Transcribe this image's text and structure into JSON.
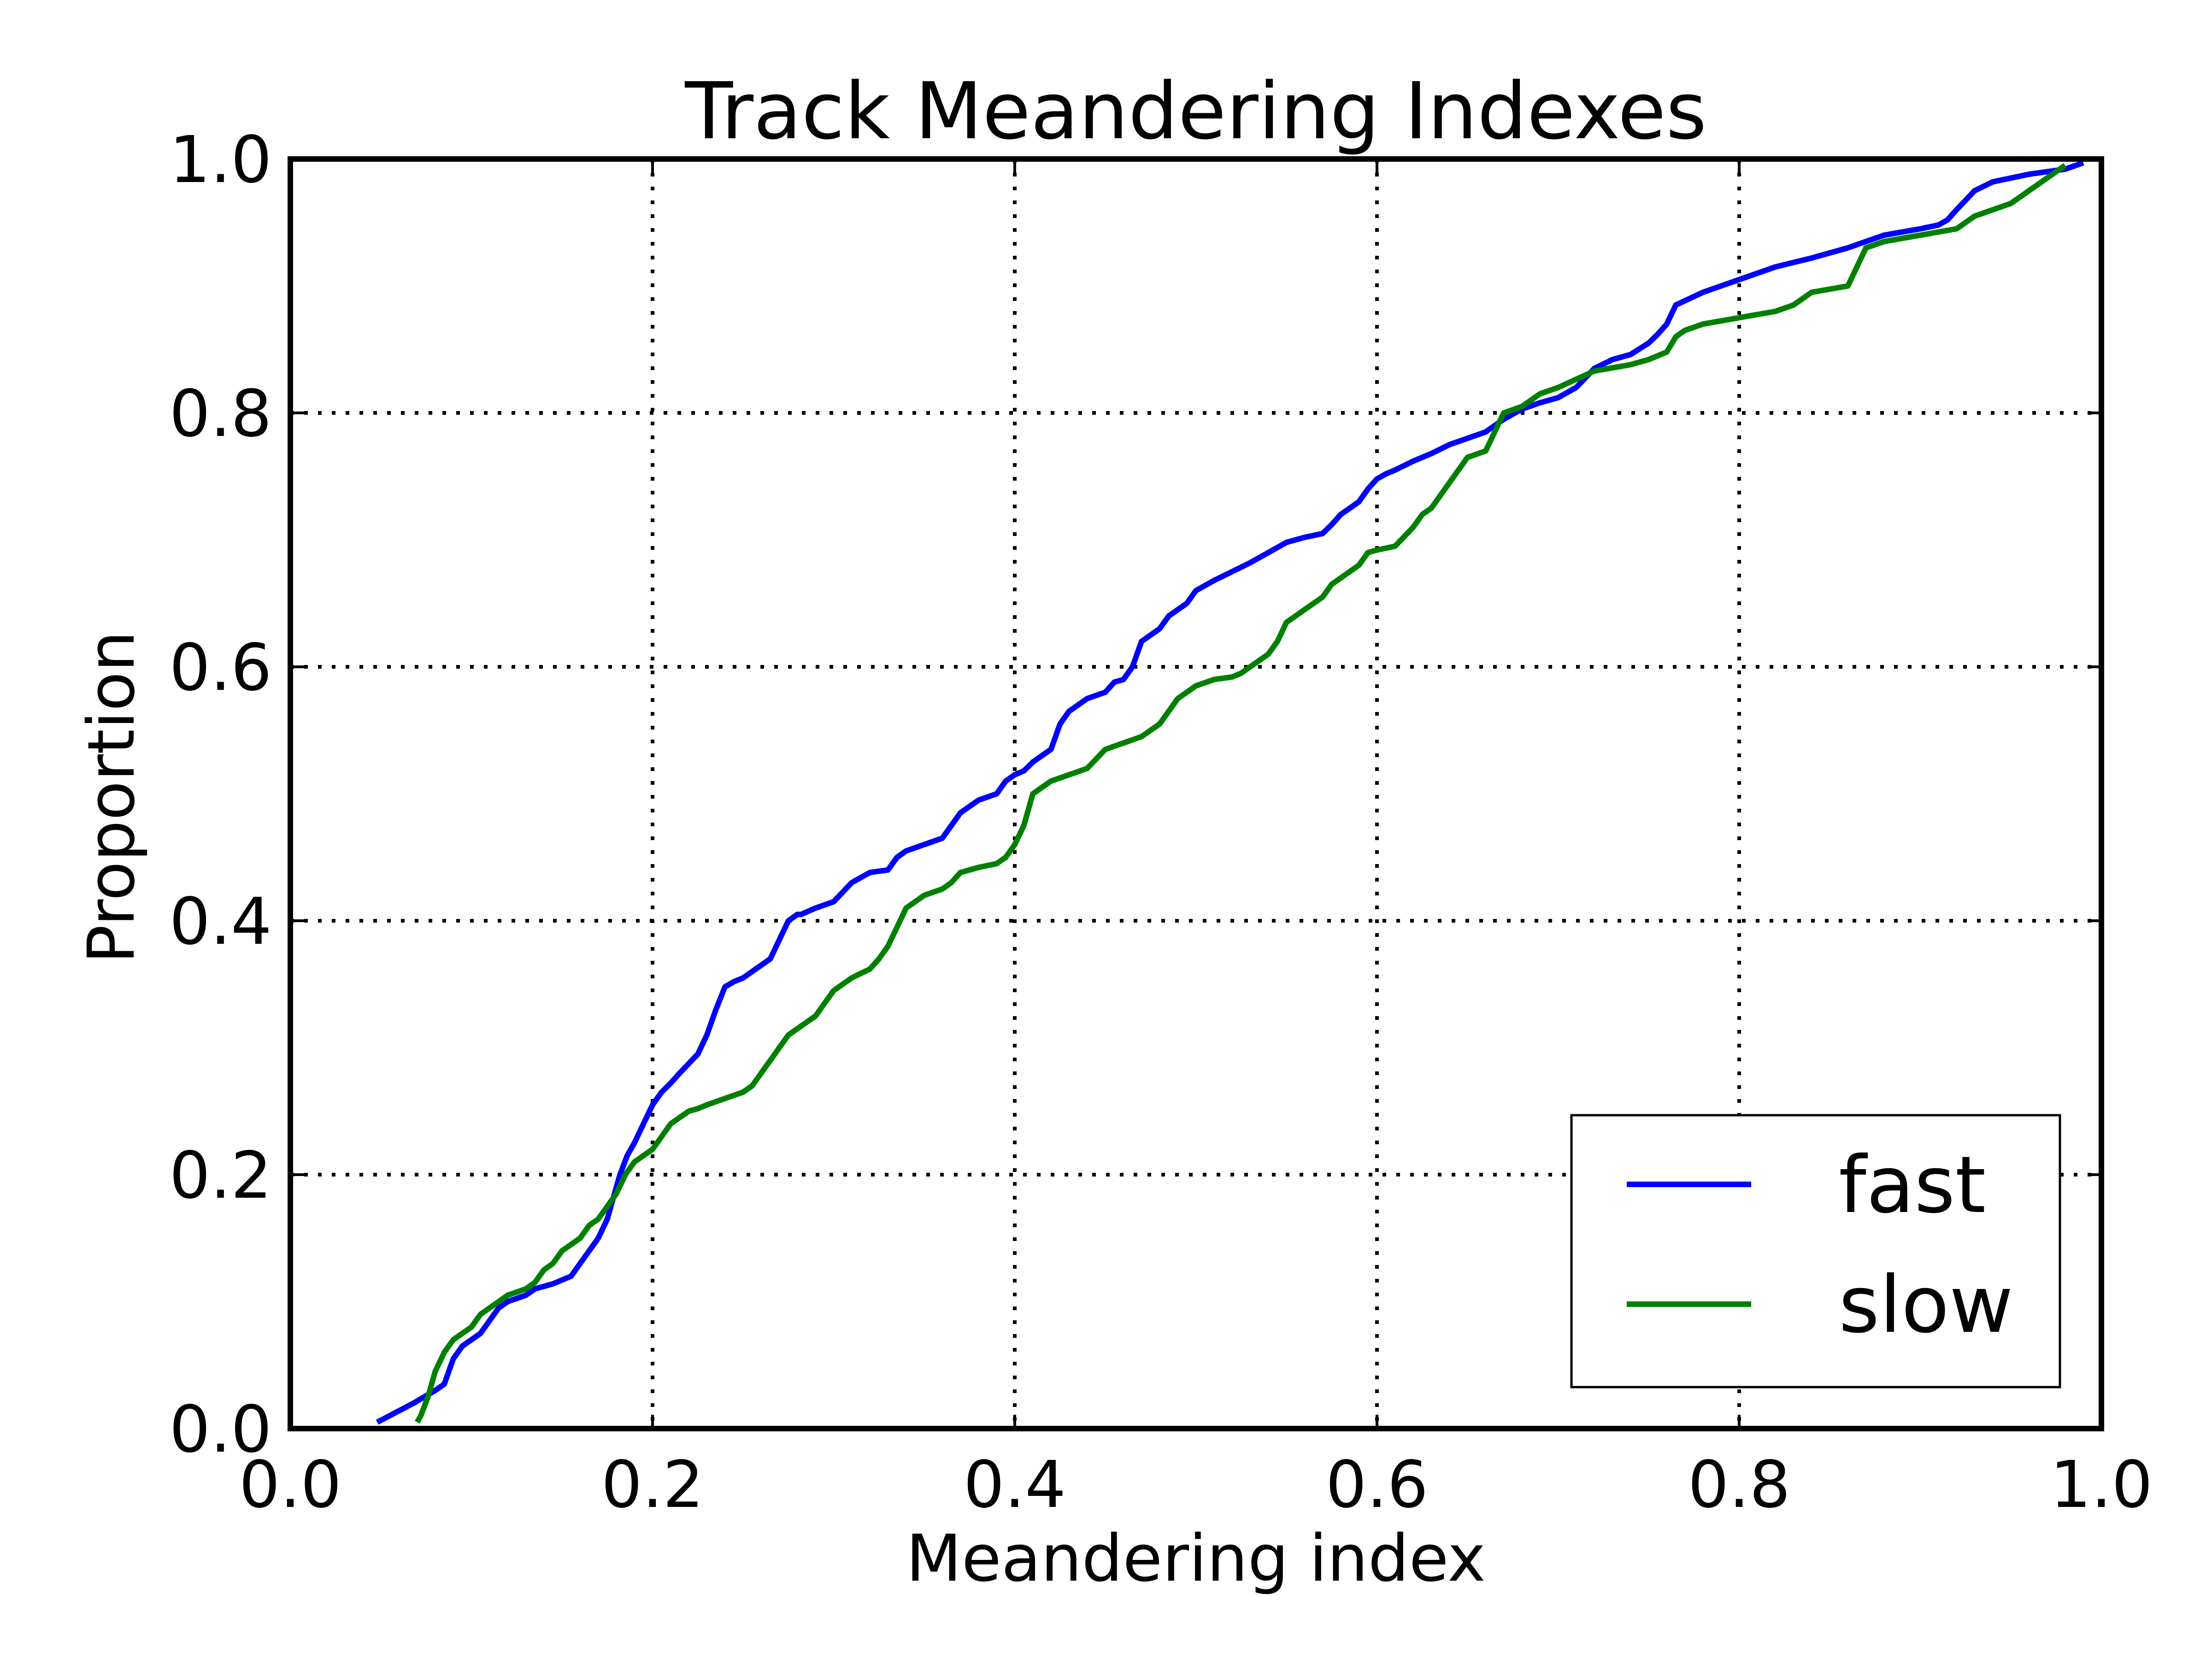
{
  "chart_data": {
    "type": "line",
    "title": "Track Meandering Indexes",
    "xlabel": "Meandering index",
    "ylabel": "Proportion",
    "xlim": [
      0.0,
      1.0
    ],
    "ylim": [
      0.0,
      1.0
    ],
    "xticks": [
      0.0,
      0.2,
      0.4,
      0.6,
      0.8,
      1.0
    ],
    "yticks": [
      0.0,
      0.2,
      0.4,
      0.6,
      0.8,
      1.0
    ],
    "xtick_labels": [
      "0.0",
      "0.2",
      "0.4",
      "0.6",
      "0.8",
      "1.0"
    ],
    "ytick_labels": [
      "0.0",
      "0.2",
      "0.4",
      "0.6",
      "0.8",
      "1.0"
    ],
    "grid": true,
    "legend_position": "lower-right",
    "series": [
      {
        "name": "fast",
        "color": "#0000ff",
        "x": [
          0.048,
          0.068,
          0.08,
          0.085,
          0.09,
          0.095,
          0.105,
          0.11,
          0.115,
          0.12,
          0.13,
          0.135,
          0.14,
          0.145,
          0.155,
          0.16,
          0.165,
          0.17,
          0.175,
          0.178,
          0.182,
          0.186,
          0.19,
          0.195,
          0.2,
          0.205,
          0.21,
          0.215,
          0.225,
          0.23,
          0.235,
          0.24,
          0.245,
          0.25,
          0.255,
          0.265,
          0.27,
          0.275,
          0.28,
          0.282,
          0.29,
          0.3,
          0.31,
          0.32,
          0.33,
          0.335,
          0.34,
          0.36,
          0.365,
          0.37,
          0.375,
          0.38,
          0.39,
          0.395,
          0.4,
          0.405,
          0.41,
          0.415,
          0.42,
          0.425,
          0.43,
          0.44,
          0.45,
          0.455,
          0.46,
          0.465,
          0.47,
          0.48,
          0.485,
          0.49,
          0.495,
          0.5,
          0.51,
          0.52,
          0.53,
          0.54,
          0.55,
          0.56,
          0.57,
          0.575,
          0.58,
          0.59,
          0.595,
          0.6,
          0.605,
          0.61,
          0.62,
          0.63,
          0.64,
          0.66,
          0.665,
          0.67,
          0.68,
          0.69,
          0.7,
          0.71,
          0.72,
          0.73,
          0.74,
          0.75,
          0.755,
          0.76,
          0.765,
          0.78,
          0.79,
          0.8,
          0.82,
          0.84,
          0.86,
          0.87,
          0.88,
          0.9,
          0.91,
          0.915,
          0.92,
          0.93,
          0.94,
          0.96,
          0.98,
          0.99
        ],
        "y": [
          0.005,
          0.02,
          0.03,
          0.035,
          0.055,
          0.065,
          0.075,
          0.085,
          0.095,
          0.1,
          0.105,
          0.11,
          0.112,
          0.114,
          0.12,
          0.13,
          0.14,
          0.15,
          0.165,
          0.18,
          0.2,
          0.215,
          0.225,
          0.24,
          0.255,
          0.265,
          0.272,
          0.28,
          0.295,
          0.31,
          0.33,
          0.348,
          0.352,
          0.355,
          0.36,
          0.37,
          0.385,
          0.4,
          0.405,
          0.405,
          0.41,
          0.415,
          0.43,
          0.438,
          0.44,
          0.45,
          0.455,
          0.465,
          0.475,
          0.485,
          0.49,
          0.495,
          0.5,
          0.51,
          0.515,
          0.518,
          0.525,
          0.53,
          0.535,
          0.555,
          0.565,
          0.575,
          0.58,
          0.588,
          0.59,
          0.6,
          0.62,
          0.63,
          0.64,
          0.645,
          0.65,
          0.66,
          0.668,
          0.675,
          0.682,
          0.69,
          0.698,
          0.702,
          0.705,
          0.712,
          0.72,
          0.73,
          0.74,
          0.748,
          0.752,
          0.755,
          0.762,
          0.768,
          0.775,
          0.785,
          0.79,
          0.795,
          0.803,
          0.808,
          0.812,
          0.82,
          0.835,
          0.842,
          0.846,
          0.855,
          0.862,
          0.87,
          0.885,
          0.895,
          0.9,
          0.905,
          0.915,
          0.922,
          0.93,
          0.935,
          0.94,
          0.945,
          0.948,
          0.952,
          0.96,
          0.975,
          0.982,
          0.988,
          0.992,
          0.997
        ]
      },
      {
        "name": "slow",
        "color": "#008000",
        "x": [
          0.07,
          0.072,
          0.076,
          0.08,
          0.085,
          0.09,
          0.1,
          0.105,
          0.11,
          0.115,
          0.12,
          0.13,
          0.135,
          0.14,
          0.145,
          0.15,
          0.16,
          0.165,
          0.17,
          0.175,
          0.18,
          0.185,
          0.19,
          0.2,
          0.205,
          0.21,
          0.215,
          0.22,
          0.225,
          0.23,
          0.24,
          0.25,
          0.255,
          0.26,
          0.265,
          0.27,
          0.275,
          0.28,
          0.29,
          0.295,
          0.3,
          0.31,
          0.32,
          0.325,
          0.33,
          0.335,
          0.34,
          0.35,
          0.36,
          0.365,
          0.37,
          0.38,
          0.39,
          0.395,
          0.4,
          0.405,
          0.41,
          0.415,
          0.42,
          0.43,
          0.44,
          0.45,
          0.46,
          0.47,
          0.475,
          0.48,
          0.49,
          0.5,
          0.51,
          0.52,
          0.525,
          0.53,
          0.54,
          0.545,
          0.55,
          0.56,
          0.57,
          0.575,
          0.58,
          0.59,
          0.595,
          0.6,
          0.61,
          0.62,
          0.625,
          0.63,
          0.64,
          0.645,
          0.65,
          0.66,
          0.665,
          0.67,
          0.68,
          0.685,
          0.69,
          0.7,
          0.72,
          0.74,
          0.75,
          0.76,
          0.765,
          0.77,
          0.78,
          0.8,
          0.82,
          0.83,
          0.84,
          0.86,
          0.87,
          0.88,
          0.9,
          0.92,
          0.93,
          0.94,
          0.95,
          0.96,
          0.97,
          0.98
        ],
        "y": [
          0.005,
          0.01,
          0.025,
          0.045,
          0.06,
          0.07,
          0.08,
          0.09,
          0.095,
          0.1,
          0.105,
          0.11,
          0.115,
          0.125,
          0.13,
          0.14,
          0.15,
          0.16,
          0.165,
          0.175,
          0.185,
          0.2,
          0.21,
          0.22,
          0.23,
          0.24,
          0.245,
          0.25,
          0.252,
          0.255,
          0.26,
          0.265,
          0.27,
          0.28,
          0.29,
          0.3,
          0.31,
          0.315,
          0.325,
          0.335,
          0.345,
          0.355,
          0.362,
          0.37,
          0.38,
          0.395,
          0.41,
          0.42,
          0.425,
          0.43,
          0.438,
          0.442,
          0.445,
          0.45,
          0.46,
          0.475,
          0.5,
          0.505,
          0.51,
          0.515,
          0.52,
          0.535,
          0.54,
          0.545,
          0.55,
          0.555,
          0.575,
          0.585,
          0.59,
          0.592,
          0.595,
          0.6,
          0.61,
          0.62,
          0.635,
          0.645,
          0.655,
          0.665,
          0.67,
          0.68,
          0.69,
          0.692,
          0.695,
          0.71,
          0.72,
          0.725,
          0.745,
          0.755,
          0.765,
          0.77,
          0.785,
          0.8,
          0.805,
          0.81,
          0.815,
          0.82,
          0.833,
          0.838,
          0.842,
          0.848,
          0.86,
          0.865,
          0.87,
          0.875,
          0.88,
          0.885,
          0.895,
          0.9,
          0.93,
          0.935,
          0.94,
          0.945,
          0.955,
          0.96,
          0.965,
          0.975,
          0.985,
          0.995
        ]
      }
    ]
  }
}
